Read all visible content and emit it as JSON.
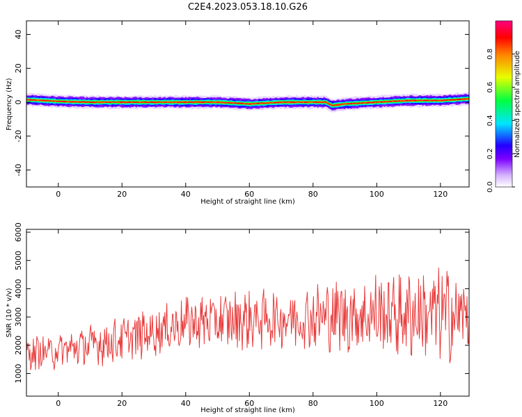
{
  "title": "C2E4.2023.053.18.10.G26",
  "chart_data": [
    {
      "type": "heatmap",
      "xlabel": "Height of straight line (km)",
      "ylabel": "Frequency (Hz)",
      "xlim": [
        -10,
        129
      ],
      "ylim": [
        -50,
        48
      ],
      "xticks": [
        0,
        20,
        40,
        60,
        80,
        100,
        120
      ],
      "yticks": [
        -40,
        -20,
        0,
        20,
        40
      ],
      "colorbar": {
        "label": "Normalized spectral amplitude",
        "range": [
          0,
          1
        ],
        "ticks": [
          0.0,
          0.2,
          0.4,
          0.6,
          0.8
        ],
        "stops": [
          "#ffffff",
          "#d6b3ff",
          "#7b00ff",
          "#2200ff",
          "#00e5ff",
          "#00ff40",
          "#e8ff00",
          "#ff8000",
          "#ff0000",
          "#ff0080"
        ]
      },
      "band_center_freq": {
        "x": [
          -10,
          0,
          10,
          20,
          40,
          50,
          60,
          70,
          80,
          84,
          86,
          90,
          100,
          110,
          120,
          129
        ],
        "y": [
          1.5,
          0.5,
          0,
          0,
          0,
          0,
          -1,
          0,
          0,
          0,
          -2,
          -1,
          0,
          1,
          1,
          2
        ]
      },
      "band_half_width_hz": 3
    },
    {
      "type": "line",
      "xlabel": "Height of straight line (km)",
      "ylabel": "SNR (10 * v/v)",
      "xlim": [
        -10,
        129
      ],
      "ylim": [
        200,
        6100
      ],
      "xticks": [
        0,
        20,
        40,
        60,
        80,
        100,
        120
      ],
      "yticks": [
        1000,
        2000,
        3000,
        4000,
        5000,
        6000
      ],
      "color": "#e83a3a",
      "trend": {
        "x": [
          -10,
          0,
          20,
          40,
          60,
          80,
          100,
          120,
          129
        ],
        "y": [
          1700,
          1800,
          2200,
          2800,
          2900,
          3000,
          3100,
          3100,
          3000
        ]
      },
      "amplitude": {
        "x": [
          -10,
          20,
          40,
          60,
          80,
          100,
          129
        ],
        "y": [
          500,
          700,
          800,
          900,
          1000,
          1300,
          1500
        ]
      }
    }
  ]
}
